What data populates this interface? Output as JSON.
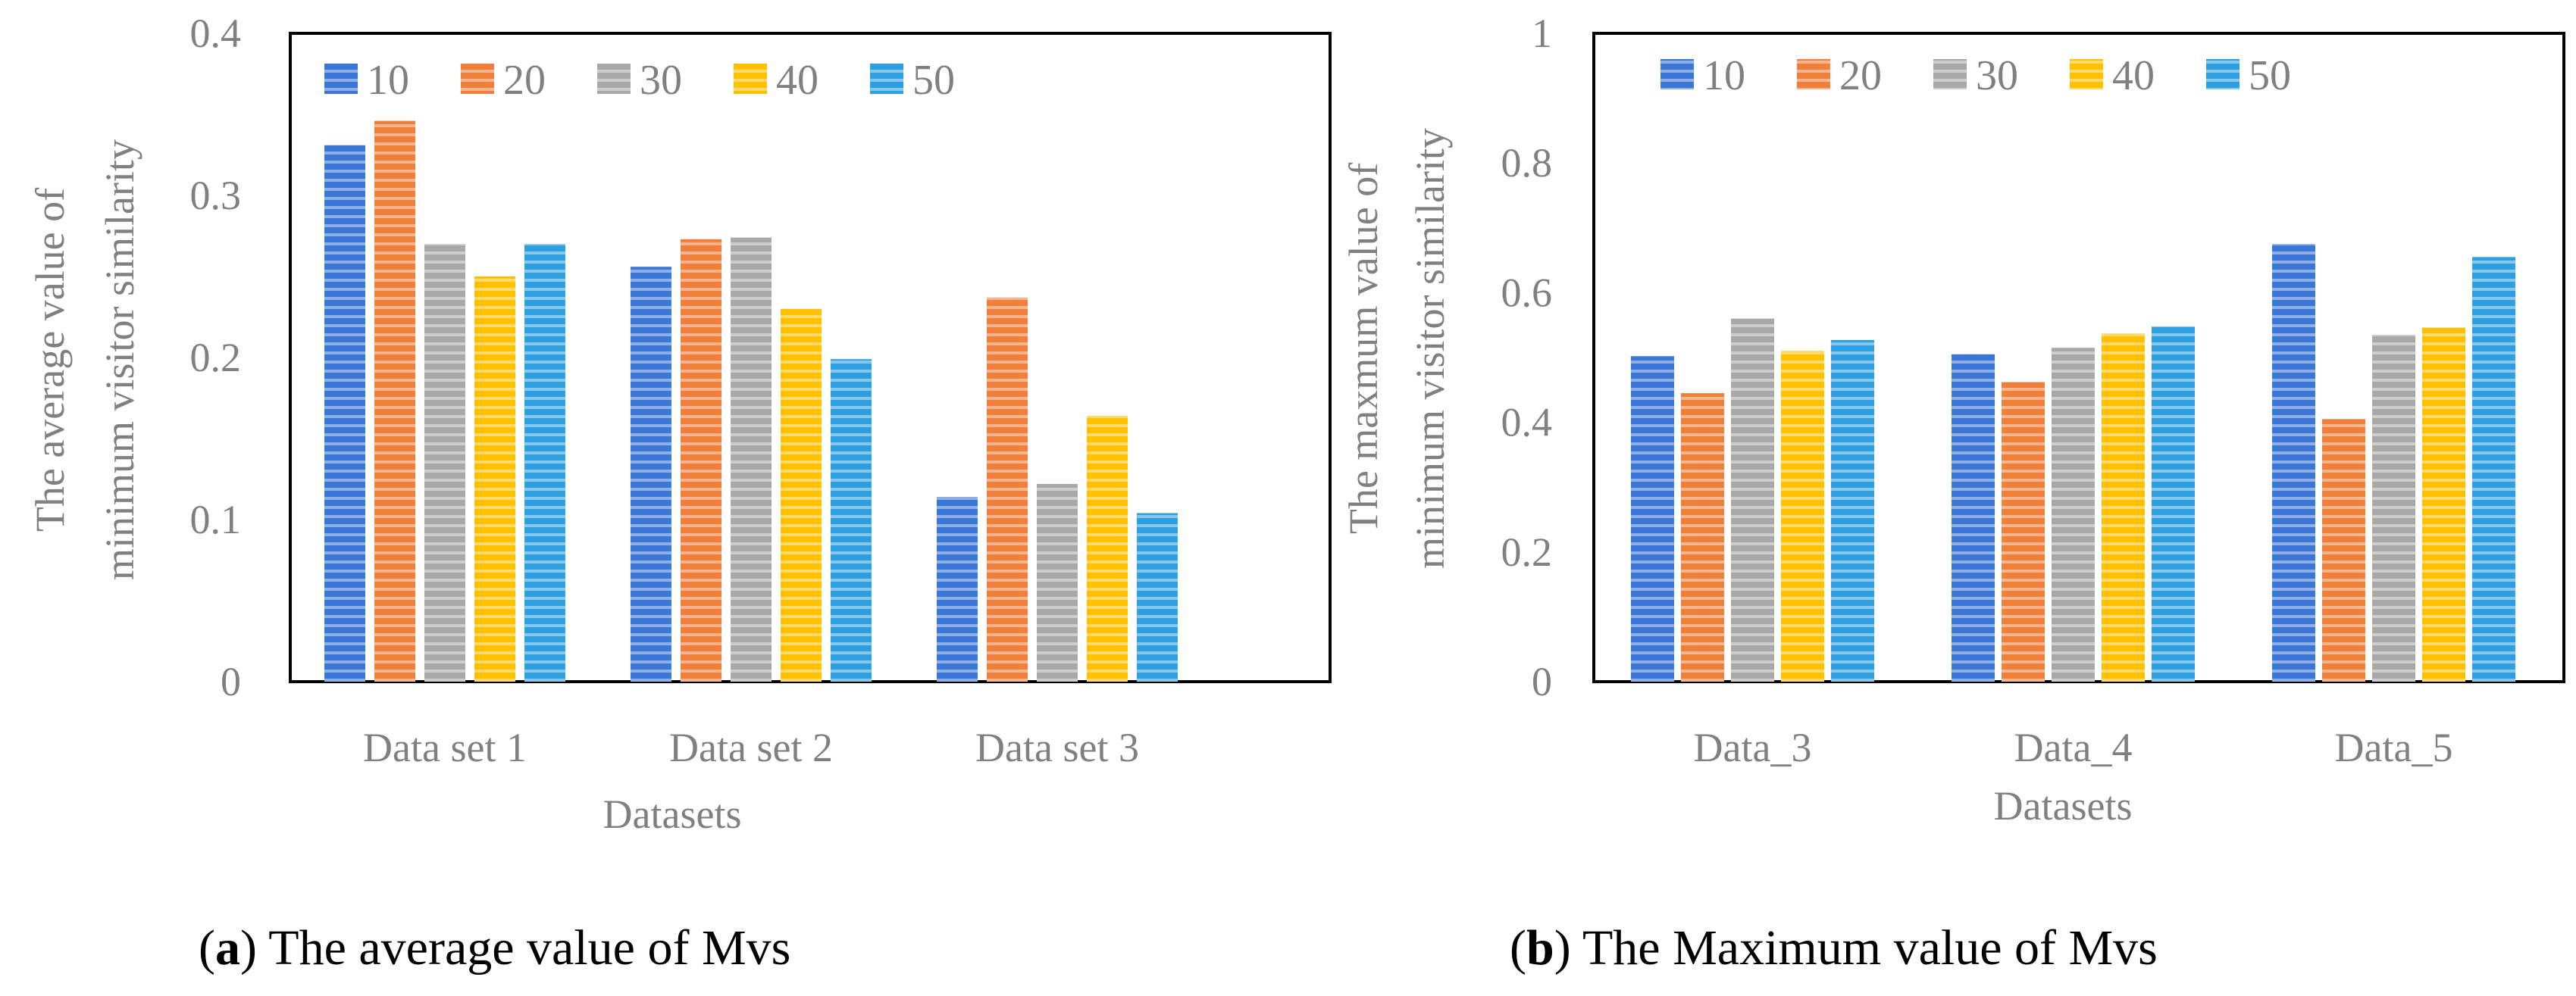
{
  "colors": {
    "10": "#3a77d6",
    "20": "#f07f3c",
    "30": "#a8a8a8",
    "40": "#ffc000",
    "50": "#2e9fe0"
  },
  "chart_data": [
    {
      "type": "bar",
      "title": "",
      "xlabel": "Datasets",
      "ylabel_line1": "The average value of",
      "ylabel_line2": "minimum visitor similarity",
      "categories": [
        "Data set 1",
        "Data set 2",
        "Data set 3"
      ],
      "ylim": [
        0,
        0.4
      ],
      "yticks": [
        0,
        0.1,
        0.2,
        0.3,
        0.4
      ],
      "ytick_labels": [
        "0",
        "0.1",
        "0.2",
        "0.3",
        "0.4"
      ],
      "legend_position": "top",
      "series": [
        {
          "name": "10",
          "values": [
            0.331,
            0.256,
            0.114
          ]
        },
        {
          "name": "20",
          "values": [
            0.346,
            0.273,
            0.237
          ]
        },
        {
          "name": "30",
          "values": [
            0.27,
            0.274,
            0.122
          ]
        },
        {
          "name": "40",
          "values": [
            0.25,
            0.23,
            0.164
          ]
        },
        {
          "name": "50",
          "values": [
            0.27,
            0.199,
            0.104
          ]
        }
      ],
      "caption_letter": "a",
      "caption_text": " The average value of Mvs"
    },
    {
      "type": "bar",
      "title": "",
      "xlabel": "Datasets",
      "ylabel_line1": "The maxmum value of",
      "ylabel_line2": "minimum visitor similarity",
      "categories": [
        "Data_3",
        "Data_4",
        "Data_5"
      ],
      "ylim": [
        0,
        1
      ],
      "yticks": [
        0,
        0.2,
        0.4,
        0.6,
        0.8,
        1
      ],
      "ytick_labels": [
        "0",
        "0.2",
        "0.4",
        "0.6",
        "0.8",
        "1"
      ],
      "legend_position": "top",
      "series": [
        {
          "name": "10",
          "values": [
            0.502,
            0.505,
            0.675
          ]
        },
        {
          "name": "20",
          "values": [
            0.445,
            0.462,
            0.405
          ]
        },
        {
          "name": "30",
          "values": [
            0.56,
            0.515,
            0.535
          ]
        },
        {
          "name": "40",
          "values": [
            0.51,
            0.537,
            0.546
          ]
        },
        {
          "name": "50",
          "values": [
            0.527,
            0.548,
            0.655
          ]
        }
      ],
      "caption_letter": "b",
      "caption_text": " The Maximum value of Mvs"
    }
  ]
}
